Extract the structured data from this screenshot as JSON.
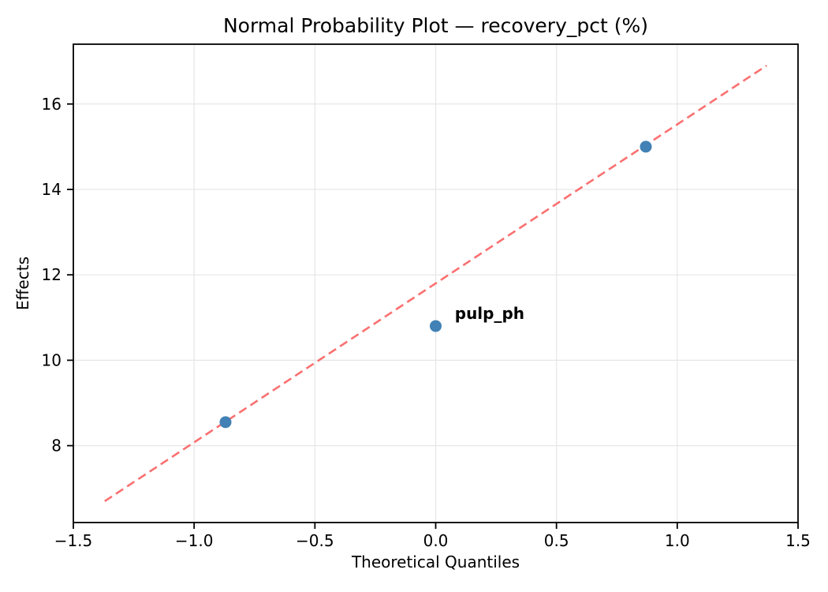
{
  "figure": {
    "background_color": "#ffffff",
    "axis_color": "#000000",
    "grid_color": "#e6e6e6"
  },
  "chart_data": {
    "type": "scatter",
    "title": "Normal Probability Plot — recovery_pct (%)",
    "xlabel": "Theoretical Quantiles",
    "ylabel": "Effects",
    "xlim": [
      -1.5,
      1.5
    ],
    "ylim": [
      6.2,
      17.4
    ],
    "grid": true,
    "legend": "none",
    "x_ticks": [
      {
        "value": -1.5,
        "label": "−1.5"
      },
      {
        "value": -1.0,
        "label": "−1.0"
      },
      {
        "value": -0.5,
        "label": "−0.5"
      },
      {
        "value": 0.0,
        "label": "0.0"
      },
      {
        "value": 0.5,
        "label": "0.5"
      },
      {
        "value": 1.0,
        "label": "1.0"
      },
      {
        "value": 1.5,
        "label": "1.5"
      }
    ],
    "y_ticks": [
      {
        "value": 8,
        "label": "8"
      },
      {
        "value": 10,
        "label": "10"
      },
      {
        "value": 12,
        "label": "12"
      },
      {
        "value": 14,
        "label": "14"
      },
      {
        "value": 16,
        "label": "16"
      }
    ],
    "points": [
      {
        "x": -0.87,
        "y": 8.55
      },
      {
        "x": 0.0,
        "y": 10.8
      },
      {
        "x": 0.87,
        "y": 15.0
      }
    ],
    "point_color": "#4181b5",
    "point_radius": 7.5,
    "fit_line": {
      "x_start": -1.37,
      "y_start": 6.7,
      "x_end": 1.37,
      "y_end": 16.9,
      "color": "#fa7070",
      "style": "dashed"
    },
    "annotation": {
      "text": "pulp_ph",
      "x": 0.04,
      "y": 11.1,
      "color": "#e60000"
    }
  }
}
